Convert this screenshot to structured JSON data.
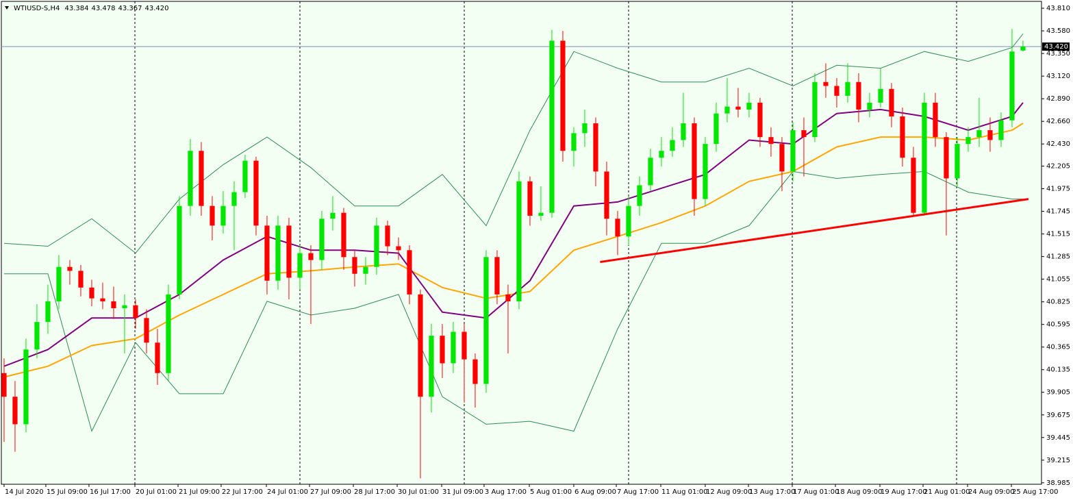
{
  "chart_data": {
    "type": "candlestick",
    "title": "WTIUSD-S,H4",
    "quote": [
      43.384,
      43.478,
      43.367,
      {
        "value": 43.42,
        "label": "43.420"
      }
    ],
    "up_color": "#00e600",
    "down_color": "#ff0000",
    "xlim": [
      -0.06,
      94.69
    ],
    "ylim": [
      38.97,
      43.88
    ],
    "yticks": [
      {
        "value": 43.81,
        "label": "43.810"
      },
      {
        "value": 43.58,
        "label": "43.580"
      },
      {
        "value": 43.35,
        "label": "43.350"
      },
      {
        "value": 43.12,
        "label": "43.120"
      },
      {
        "value": 42.89,
        "label": "42.890"
      },
      {
        "value": 42.66,
        "label": "42.660"
      },
      {
        "value": 42.43,
        "label": "42.430"
      },
      {
        "value": 42.205,
        "label": "42.205"
      },
      {
        "value": 41.975,
        "label": "41.975"
      },
      {
        "value": 41.745,
        "label": "41.745"
      },
      {
        "value": 41.515,
        "label": "41.515"
      },
      {
        "value": 41.285,
        "label": "41.285"
      },
      {
        "value": 41.055,
        "label": "41.055"
      },
      {
        "value": 40.825,
        "label": "40.825"
      },
      {
        "value": 40.595,
        "label": "40.595"
      },
      {
        "value": 40.365,
        "label": "40.365"
      },
      {
        "value": 40.135,
        "label": "40.135"
      },
      {
        "value": 39.905,
        "label": "39.905"
      },
      {
        "value": 39.675,
        "label": "39.675"
      },
      {
        "value": 39.445,
        "label": "39.445"
      },
      {
        "value": 39.215,
        "label": "39.215"
      },
      {
        "value": 38.985,
        "label": "38.985"
      }
    ],
    "xticks": [
      {
        "value": 0,
        "label": "14 Jul 2020"
      },
      {
        "value": 3.81,
        "label": "15 Jul 09:00"
      },
      {
        "value": 7.75,
        "label": "16 Jul 17:00"
      },
      {
        "value": 11.94,
        "label": "20 Jul 01:00"
      },
      {
        "value": 15.88,
        "label": "21 Jul 09:00"
      },
      {
        "value": 19.81,
        "label": "22 Jul 17:00"
      },
      {
        "value": 23.94,
        "label": "24 Jul 01:00"
      },
      {
        "value": 27.88,
        "label": "27 Jul 09:00"
      },
      {
        "value": 31.88,
        "label": "28 Jul 17:00"
      },
      {
        "value": 35.88,
        "label": "30 Jul 01:00"
      },
      {
        "value": 39.94,
        "label": "31 Jul 09:00"
      },
      {
        "value": 43.81,
        "label": "3 Aug 17:00"
      },
      {
        "value": 47.94,
        "label": "5 Aug 01:00"
      },
      {
        "value": 52.0,
        "label": "6 Aug 09:00"
      },
      {
        "value": 55.88,
        "label": "7 Aug 17:00"
      },
      {
        "value": 59.94,
        "label": "11 Aug 01:00"
      },
      {
        "value": 64.0,
        "label": "12 Aug 09:00"
      },
      {
        "value": 67.94,
        "label": "13 Aug 17:00"
      },
      {
        "value": 71.94,
        "label": "17 Aug 01:00"
      },
      {
        "value": 75.88,
        "label": "18 Aug 09:00"
      },
      {
        "value": 79.94,
        "label": "19 Aug 17:00"
      },
      {
        "value": 83.88,
        "label": "21 Aug 01:00"
      },
      {
        "value": 87.94,
        "label": "24 Aug 09:00"
      },
      {
        "value": 91.94,
        "label": "25 Aug 17:00"
      }
    ],
    "ohlc": [
      [
        40.1,
        40.25,
        39.4,
        39.86
      ],
      [
        39.86,
        40.02,
        39.3,
        39.58
      ],
      [
        39.58,
        40.45,
        39.5,
        40.34
      ],
      [
        40.34,
        40.8,
        40.25,
        40.62
      ],
      [
        40.62,
        41.0,
        40.5,
        40.83
      ],
      [
        40.83,
        41.3,
        40.75,
        41.18
      ],
      [
        41.18,
        41.25,
        41.0,
        41.14
      ],
      [
        41.14,
        41.2,
        40.88,
        40.97
      ],
      [
        40.97,
        41.05,
        40.78,
        40.86
      ],
      [
        40.86,
        41.02,
        40.75,
        40.83
      ],
      [
        40.83,
        40.98,
        40.65,
        40.76
      ],
      [
        40.76,
        40.9,
        40.3,
        40.79
      ],
      [
        40.79,
        40.85,
        40.55,
        40.66
      ],
      [
        40.66,
        40.75,
        40.3,
        40.41
      ],
      [
        40.41,
        40.55,
        39.98,
        40.1
      ],
      [
        40.1,
        41.0,
        40.02,
        40.9
      ],
      [
        40.9,
        41.9,
        40.85,
        41.8
      ],
      [
        41.8,
        42.48,
        41.7,
        42.36
      ],
      [
        42.36,
        42.45,
        41.7,
        41.8
      ],
      [
        41.8,
        41.9,
        41.45,
        41.6
      ],
      [
        41.6,
        41.95,
        41.52,
        41.8
      ],
      [
        41.8,
        42.05,
        41.35,
        41.94
      ],
      [
        41.94,
        42.32,
        41.88,
        42.26
      ],
      [
        42.26,
        42.3,
        41.5,
        41.6
      ],
      [
        41.6,
        41.7,
        40.9,
        41.04
      ],
      [
        41.04,
        41.7,
        40.95,
        41.6
      ],
      [
        41.6,
        41.68,
        40.85,
        41.07
      ],
      [
        41.07,
        41.4,
        40.95,
        41.32
      ],
      [
        41.32,
        41.4,
        40.6,
        41.25
      ],
      [
        41.25,
        41.75,
        41.15,
        41.67
      ],
      [
        41.67,
        41.9,
        41.55,
        41.73
      ],
      [
        41.73,
        41.78,
        41.15,
        41.28
      ],
      [
        41.28,
        41.35,
        40.98,
        41.11
      ],
      [
        41.11,
        41.28,
        41.0,
        41.18
      ],
      [
        41.18,
        41.68,
        41.1,
        41.6
      ],
      [
        41.6,
        41.65,
        41.3,
        41.39
      ],
      [
        41.39,
        41.48,
        41.25,
        41.35
      ],
      [
        41.35,
        41.4,
        40.8,
        40.9
      ],
      [
        40.9,
        40.95,
        39.03,
        39.86
      ],
      [
        39.86,
        40.6,
        39.7,
        40.48
      ],
      [
        40.48,
        40.6,
        40.05,
        40.2
      ],
      [
        40.2,
        40.62,
        40.1,
        40.52
      ],
      [
        40.52,
        40.6,
        39.8,
        40.24
      ],
      [
        40.24,
        40.3,
        39.75,
        39.99
      ],
      [
        39.99,
        41.35,
        39.9,
        41.28
      ],
      [
        41.28,
        41.35,
        40.8,
        40.9
      ],
      [
        40.9,
        41.0,
        40.3,
        40.83
      ],
      [
        40.83,
        42.15,
        40.75,
        42.05
      ],
      [
        42.05,
        42.1,
        41.6,
        41.7
      ],
      [
        41.7,
        42.0,
        41.65,
        41.73
      ],
      [
        41.73,
        43.59,
        41.68,
        43.48
      ],
      [
        43.48,
        43.58,
        42.25,
        42.36
      ],
      [
        42.36,
        42.6,
        42.2,
        42.54
      ],
      [
        42.54,
        42.78,
        42.4,
        42.64
      ],
      [
        42.64,
        42.7,
        42.0,
        42.15
      ],
      [
        42.15,
        42.25,
        41.5,
        41.67
      ],
      [
        41.67,
        41.75,
        41.3,
        41.49
      ],
      [
        41.49,
        41.9,
        41.4,
        41.8
      ],
      [
        41.8,
        42.1,
        41.7,
        42.01
      ],
      [
        42.01,
        42.38,
        41.95,
        42.29
      ],
      [
        42.29,
        42.5,
        42.2,
        42.36
      ],
      [
        42.36,
        42.6,
        42.3,
        42.47
      ],
      [
        42.47,
        42.95,
        42.4,
        42.64
      ],
      [
        42.64,
        42.7,
        41.7,
        41.87
      ],
      [
        41.87,
        42.5,
        41.8,
        42.43
      ],
      [
        42.43,
        42.85,
        42.35,
        42.74
      ],
      [
        42.74,
        43.1,
        42.65,
        42.81
      ],
      [
        42.81,
        43.0,
        42.7,
        42.78
      ],
      [
        42.78,
        42.95,
        42.7,
        42.85
      ],
      [
        42.85,
        42.9,
        42.4,
        42.5
      ],
      [
        42.5,
        42.6,
        42.3,
        42.43
      ],
      [
        42.43,
        42.5,
        41.95,
        42.15
      ],
      [
        42.15,
        42.65,
        42.05,
        42.57
      ],
      [
        42.57,
        42.7,
        42.1,
        42.5
      ],
      [
        42.5,
        43.15,
        42.45,
        43.06
      ],
      [
        43.06,
        43.25,
        42.9,
        43.02
      ],
      [
        43.02,
        43.1,
        42.8,
        42.92
      ],
      [
        42.92,
        43.25,
        42.85,
        43.06
      ],
      [
        43.06,
        43.15,
        42.65,
        42.78
      ],
      [
        42.78,
        42.95,
        42.7,
        42.85
      ],
      [
        42.85,
        43.2,
        42.8,
        42.99
      ],
      [
        42.99,
        43.05,
        42.6,
        42.71
      ],
      [
        42.71,
        42.8,
        42.2,
        42.29
      ],
      [
        42.29,
        42.4,
        41.7,
        41.73
      ],
      [
        41.73,
        42.95,
        41.7,
        42.85
      ],
      [
        42.85,
        42.95,
        42.4,
        42.5
      ],
      [
        42.5,
        42.55,
        41.5,
        42.08
      ],
      [
        42.08,
        42.5,
        42.0,
        42.43
      ],
      [
        42.43,
        42.6,
        42.35,
        42.5
      ],
      [
        42.5,
        42.9,
        42.4,
        42.57
      ],
      [
        42.57,
        42.7,
        42.35,
        42.47
      ],
      [
        42.47,
        42.75,
        42.4,
        42.67
      ],
      [
        42.67,
        43.6,
        42.6,
        43.37
      ],
      [
        43.38,
        43.48,
        43.37,
        43.42
      ]
    ],
    "line_x": [
      0,
      4,
      8,
      12,
      16,
      20,
      24,
      28,
      32,
      36,
      40,
      44,
      48,
      52,
      56,
      60,
      64,
      68,
      72,
      76,
      80,
      84,
      88,
      92,
      93
    ],
    "lines": [
      {
        "color": "#2e8b57",
        "values": [
          41.42,
          41.39,
          41.67,
          41.32,
          41.87,
          42.22,
          42.5,
          42.19,
          41.8,
          41.8,
          42.12,
          41.6,
          42.57,
          43.37,
          43.2,
          43.06,
          43.06,
          43.2,
          43.02,
          43.23,
          43.2,
          43.37,
          43.27,
          43.41,
          43.55
        ]
      },
      {
        "color": "#2e8b57",
        "values": [
          41.11,
          41.11,
          39.51,
          40.41,
          39.89,
          39.89,
          40.83,
          40.69,
          40.76,
          40.9,
          39.86,
          39.58,
          39.61,
          39.51,
          40.55,
          41.42,
          41.42,
          41.6,
          42.15,
          42.08,
          42.12,
          42.15,
          41.94,
          41.87,
          41.87
        ]
      },
      {
        "color": "#ffa500",
        "values": [
          40.06,
          40.17,
          40.38,
          40.45,
          40.69,
          40.9,
          41.11,
          41.14,
          41.18,
          41.21,
          40.97,
          40.86,
          40.93,
          41.35,
          41.49,
          41.63,
          41.8,
          42.05,
          42.15,
          42.4,
          42.5,
          42.5,
          42.47,
          42.57,
          42.64
        ]
      },
      {
        "color": "#800080",
        "values": [
          40.17,
          40.34,
          40.66,
          40.66,
          40.9,
          41.25,
          41.49,
          41.35,
          41.35,
          41.32,
          40.72,
          40.66,
          41.04,
          41.8,
          41.84,
          41.98,
          42.12,
          42.47,
          42.43,
          42.74,
          42.78,
          42.71,
          42.57,
          42.71,
          42.85
        ]
      }
    ],
    "trendline": {
      "color": "#ff0000",
      "x": [
        54.4,
        93.5
      ],
      "values": [
        41.23,
        41.87
      ]
    },
    "last_price": {
      "value": 43.42,
      "label": "43.420"
    },
    "last_price_color": "#7f8fb0"
  }
}
